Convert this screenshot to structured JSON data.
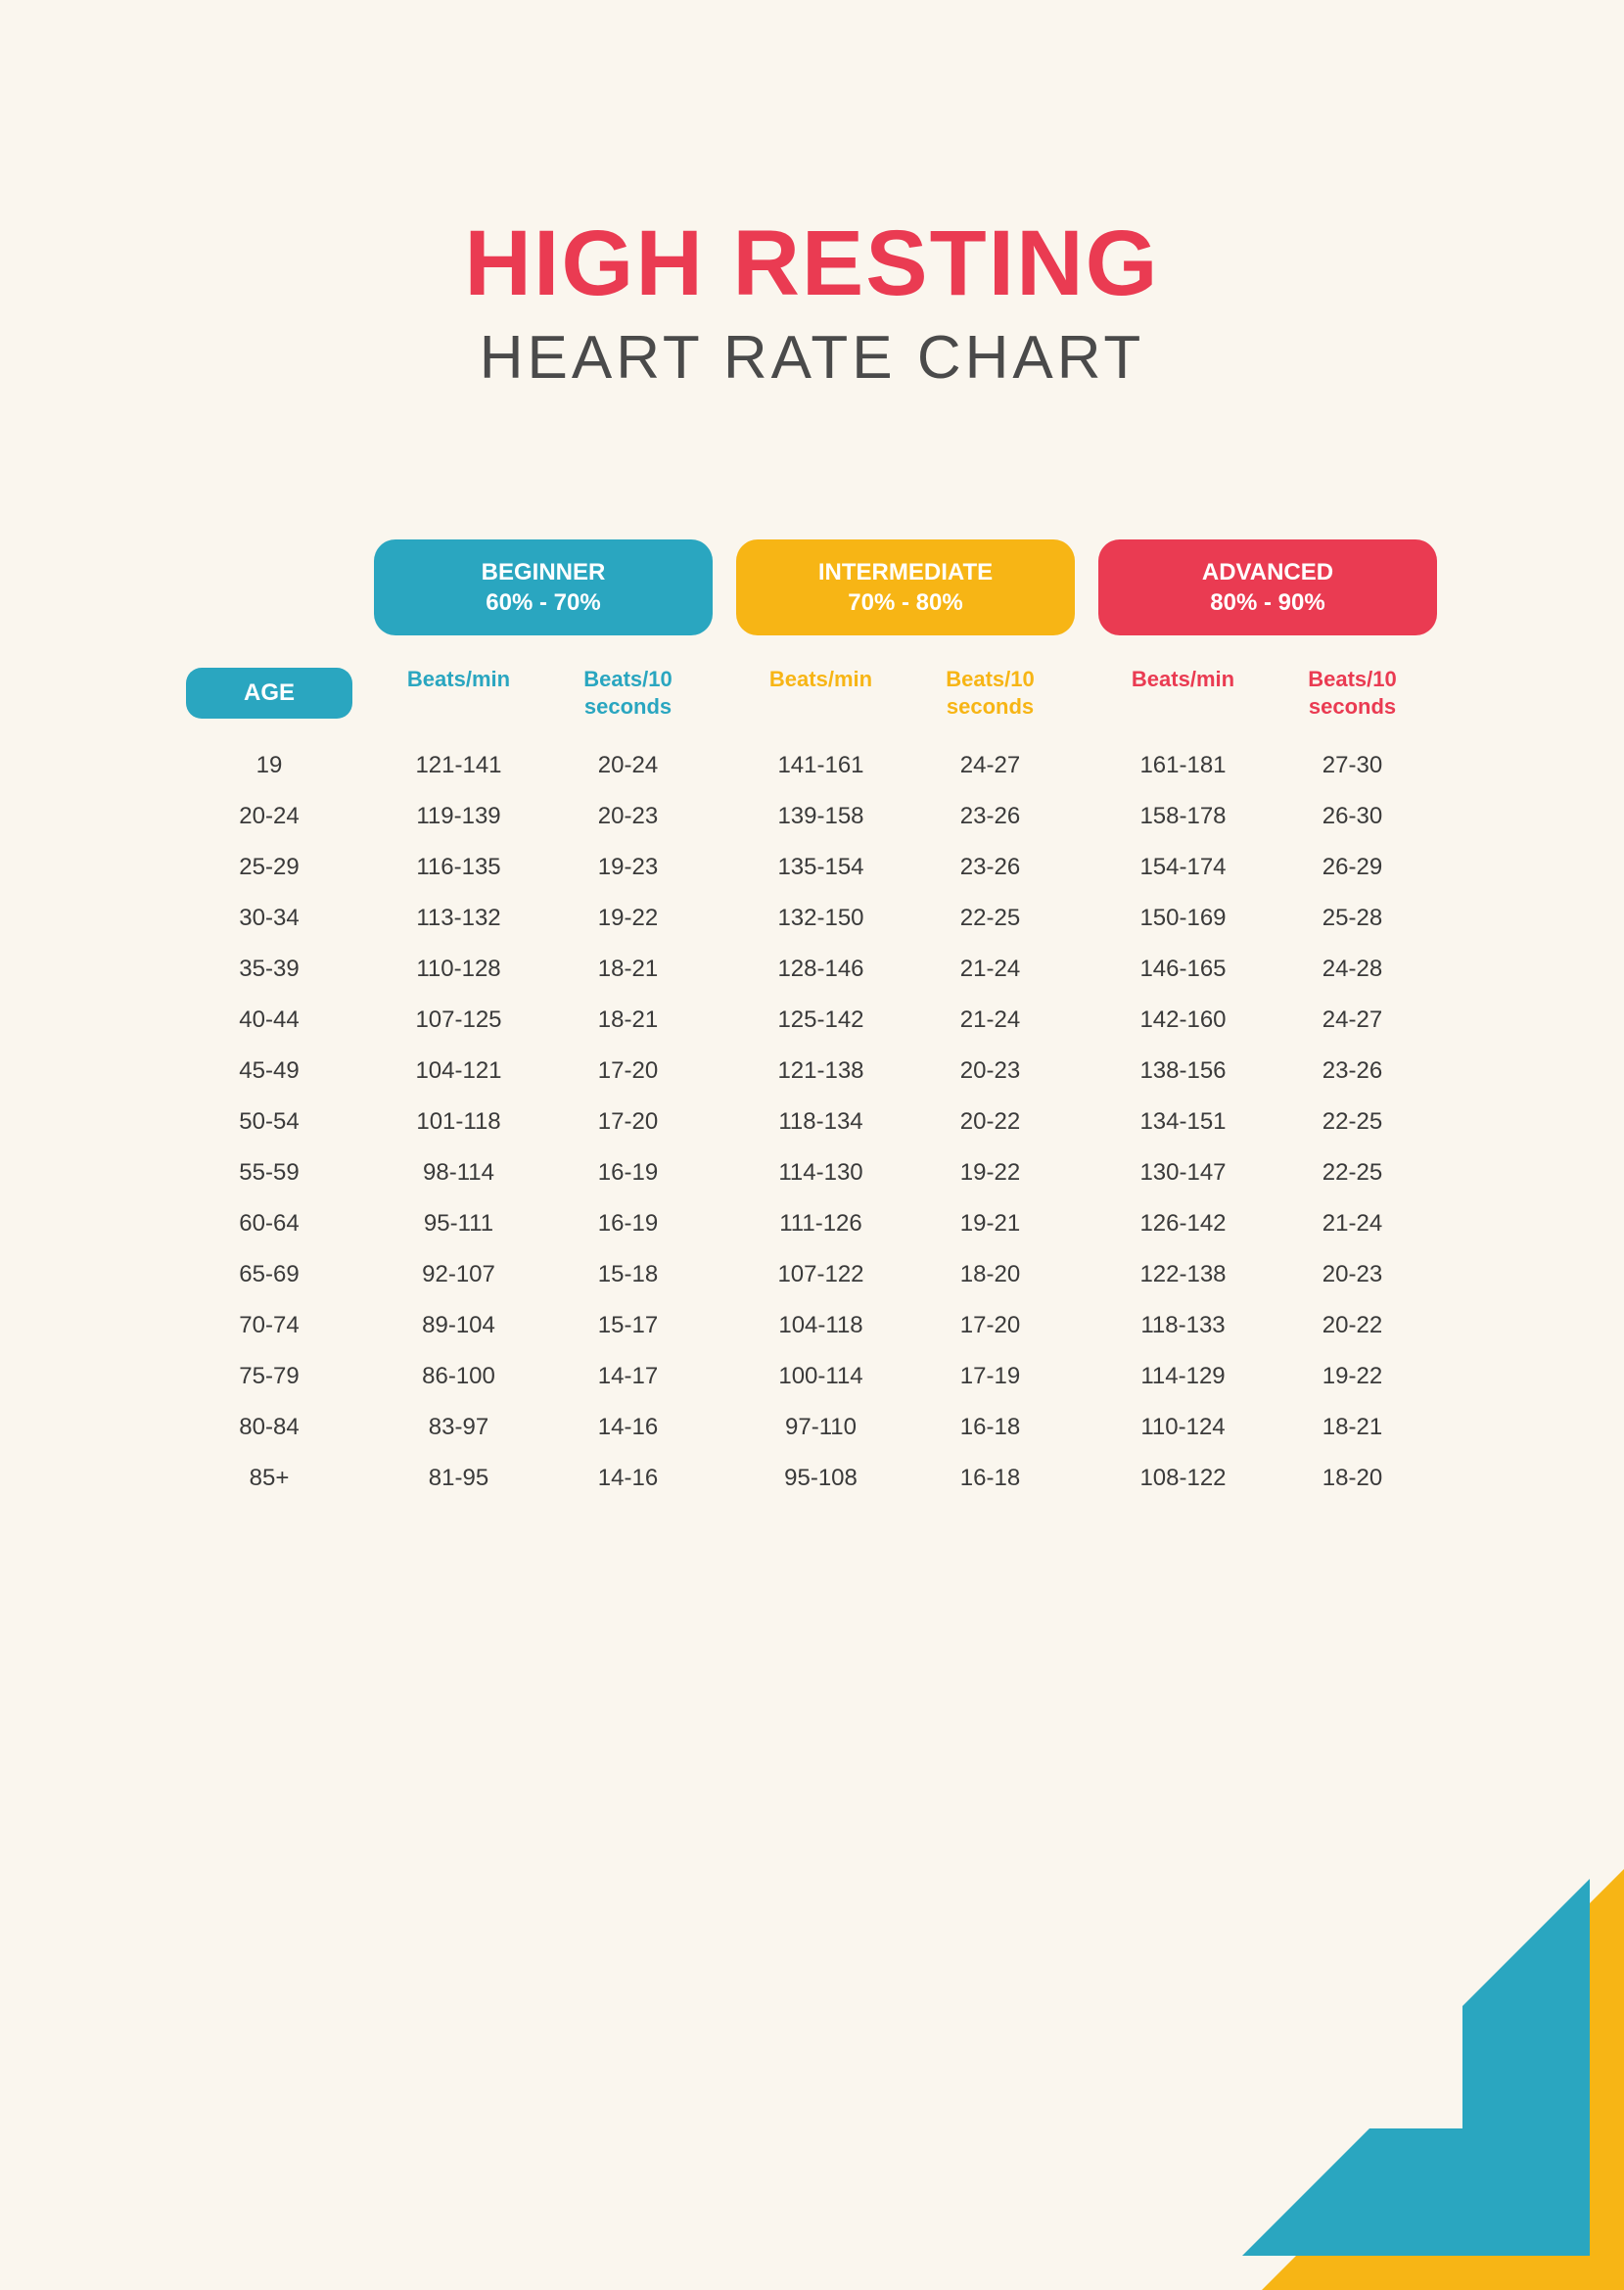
{
  "colors": {
    "background": "#faf6ee",
    "title_main": "#ea3b52",
    "title_sub": "#4a4a4a",
    "text": "#3a3a3a",
    "beginner": "#2aa6c0",
    "intermediate": "#f7b515",
    "advanced": "#ea3b52",
    "age_pill": "#2aa6c0"
  },
  "typography": {
    "title_main_size": 95,
    "title_sub_size": 62,
    "pill_size": 24,
    "sub_size": 22,
    "cell_size": 24
  },
  "title": {
    "main": "HIGH RESTING",
    "sub": "HEART RATE CHART"
  },
  "age_label": "AGE",
  "sub_labels": {
    "bpm": "Beats/min",
    "b10": "Beats/10 seconds"
  },
  "levels": [
    {
      "key": "beginner",
      "name": "BEGINNER",
      "range": "60% - 70%",
      "color": "#2aa6c0"
    },
    {
      "key": "intermediate",
      "name": "INTERMEDIATE",
      "range": "70% - 80%",
      "color": "#f7b515"
    },
    {
      "key": "advanced",
      "name": "ADVANCED",
      "range": "80% - 90%",
      "color": "#ea3b52"
    }
  ],
  "rows": [
    {
      "age": "19",
      "beginner": {
        "bpm": "121-141",
        "b10": "20-24"
      },
      "intermediate": {
        "bpm": "141-161",
        "b10": "24-27"
      },
      "advanced": {
        "bpm": "161-181",
        "b10": "27-30"
      }
    },
    {
      "age": "20-24",
      "beginner": {
        "bpm": "119-139",
        "b10": "20-23"
      },
      "intermediate": {
        "bpm": "139-158",
        "b10": "23-26"
      },
      "advanced": {
        "bpm": "158-178",
        "b10": "26-30"
      }
    },
    {
      "age": "25-29",
      "beginner": {
        "bpm": "116-135",
        "b10": "19-23"
      },
      "intermediate": {
        "bpm": "135-154",
        "b10": "23-26"
      },
      "advanced": {
        "bpm": "154-174",
        "b10": "26-29"
      }
    },
    {
      "age": "30-34",
      "beginner": {
        "bpm": "113-132",
        "b10": "19-22"
      },
      "intermediate": {
        "bpm": "132-150",
        "b10": "22-25"
      },
      "advanced": {
        "bpm": "150-169",
        "b10": "25-28"
      }
    },
    {
      "age": "35-39",
      "beginner": {
        "bpm": "110-128",
        "b10": "18-21"
      },
      "intermediate": {
        "bpm": "128-146",
        "b10": "21-24"
      },
      "advanced": {
        "bpm": "146-165",
        "b10": "24-28"
      }
    },
    {
      "age": "40-44",
      "beginner": {
        "bpm": "107-125",
        "b10": "18-21"
      },
      "intermediate": {
        "bpm": "125-142",
        "b10": "21-24"
      },
      "advanced": {
        "bpm": "142-160",
        "b10": "24-27"
      }
    },
    {
      "age": "45-49",
      "beginner": {
        "bpm": "104-121",
        "b10": "17-20"
      },
      "intermediate": {
        "bpm": "121-138",
        "b10": "20-23"
      },
      "advanced": {
        "bpm": "138-156",
        "b10": "23-26"
      }
    },
    {
      "age": "50-54",
      "beginner": {
        "bpm": "101-118",
        "b10": "17-20"
      },
      "intermediate": {
        "bpm": "118-134",
        "b10": "20-22"
      },
      "advanced": {
        "bpm": "134-151",
        "b10": "22-25"
      }
    },
    {
      "age": "55-59",
      "beginner": {
        "bpm": "98-114",
        "b10": "16-19"
      },
      "intermediate": {
        "bpm": "114-130",
        "b10": "19-22"
      },
      "advanced": {
        "bpm": "130-147",
        "b10": "22-25"
      }
    },
    {
      "age": "60-64",
      "beginner": {
        "bpm": "95-111",
        "b10": "16-19"
      },
      "intermediate": {
        "bpm": "111-126",
        "b10": "19-21"
      },
      "advanced": {
        "bpm": "126-142",
        "b10": "21-24"
      }
    },
    {
      "age": "65-69",
      "beginner": {
        "bpm": "92-107",
        "b10": "15-18"
      },
      "intermediate": {
        "bpm": "107-122",
        "b10": "18-20"
      },
      "advanced": {
        "bpm": "122-138",
        "b10": "20-23"
      }
    },
    {
      "age": "70-74",
      "beginner": {
        "bpm": "89-104",
        "b10": "15-17"
      },
      "intermediate": {
        "bpm": "104-118",
        "b10": "17-20"
      },
      "advanced": {
        "bpm": "118-133",
        "b10": "20-22"
      }
    },
    {
      "age": "75-79",
      "beginner": {
        "bpm": "86-100",
        "b10": "14-17"
      },
      "intermediate": {
        "bpm": "100-114",
        "b10": "17-19"
      },
      "advanced": {
        "bpm": "114-129",
        "b10": "19-22"
      }
    },
    {
      "age": "80-84",
      "beginner": {
        "bpm": "83-97",
        "b10": "14-16"
      },
      "intermediate": {
        "bpm": "97-110",
        "b10": "16-18"
      },
      "advanced": {
        "bpm": "110-124",
        "b10": "18-21"
      }
    },
    {
      "age": "85+",
      "beginner": {
        "bpm": "81-95",
        "b10": "14-16"
      },
      "intermediate": {
        "bpm": "95-108",
        "b10": "16-18"
      },
      "advanced": {
        "bpm": "108-122",
        "b10": "18-20"
      }
    }
  ],
  "corner_art": {
    "yellow": "#f7b515",
    "teal": "#2aa6c0"
  }
}
